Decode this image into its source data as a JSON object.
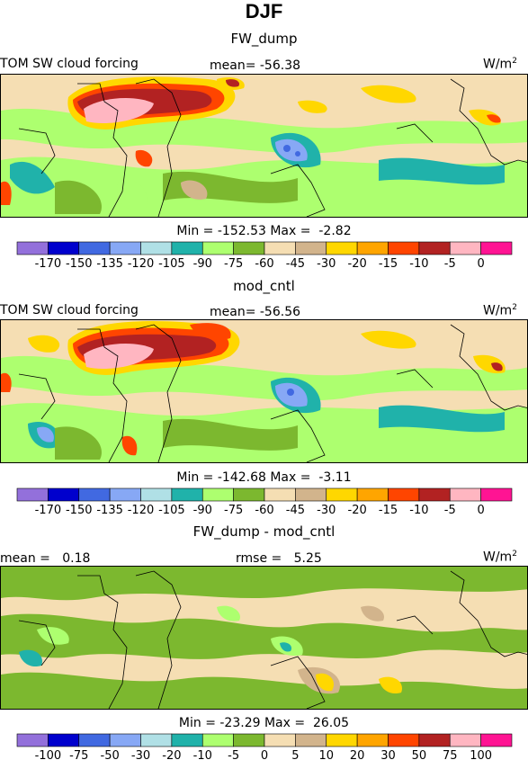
{
  "figure": {
    "season": "DJF"
  },
  "panels": [
    {
      "title": "FW_dump",
      "left_label": "TOM SW cloud forcing",
      "mid_label": "mean= -56.38",
      "units": "W/m",
      "units_sup": "2",
      "stats": "Min = -152.53 Max =  -2.82",
      "colorbar_ticks": [
        "-170",
        "-150",
        "-135",
        "-120",
        "-105",
        "-90",
        "-75",
        "-60",
        "-45",
        "-30",
        "-20",
        "-15",
        "-10",
        "-5",
        "0"
      ]
    },
    {
      "title": "mod_cntl",
      "left_label": "TOM SW cloud forcing",
      "mid_label": "mean= -56.56",
      "units": "W/m",
      "units_sup": "2",
      "stats": "Min = -142.68 Max =  -3.11",
      "colorbar_ticks": [
        "-170",
        "-150",
        "-135",
        "-120",
        "-105",
        "-90",
        "-75",
        "-60",
        "-45",
        "-30",
        "-20",
        "-15",
        "-10",
        "-5",
        "0"
      ]
    },
    {
      "title": "FW_dump - mod_cntl",
      "left_label": "mean =   0.18",
      "mid_label": "rmse =   5.25",
      "units": "W/m",
      "units_sup": "2",
      "stats": "Min = -23.29 Max =  26.05",
      "colorbar_ticks": [
        "-100",
        "-75",
        "-50",
        "-30",
        "-20",
        "-10",
        "-5",
        "0",
        "5",
        "10",
        "20",
        "30",
        "50",
        "75",
        "100"
      ]
    }
  ],
  "colorbar_colors": [
    "#9370db",
    "#0000cd",
    "#4169e1",
    "#87a8f5",
    "#b0e0e6",
    "#20b2aa",
    "#adff6f",
    "#7cb82f",
    "#f5deb3",
    "#d2b48c",
    "#ffd700",
    "#ffa500",
    "#ff4500",
    "#b22222",
    "#ffb6c1",
    "#ff1493"
  ],
  "chart_data": [
    {
      "type": "heatmap",
      "title": "FW_dump",
      "field": "TOM SW cloud forcing",
      "units": "W/m2",
      "mean": -56.38,
      "min": -152.53,
      "max": -2.82,
      "levels": [
        -170,
        -150,
        -135,
        -120,
        -105,
        -90,
        -75,
        -60,
        -45,
        -30,
        -20,
        -15,
        -10,
        -5,
        0
      ]
    },
    {
      "type": "heatmap",
      "title": "mod_cntl",
      "field": "TOM SW cloud forcing",
      "units": "W/m2",
      "mean": -56.56,
      "min": -142.68,
      "max": -3.11,
      "levels": [
        -170,
        -150,
        -135,
        -120,
        -105,
        -90,
        -75,
        -60,
        -45,
        -30,
        -20,
        -15,
        -10,
        -5,
        0
      ]
    },
    {
      "type": "heatmap",
      "title": "FW_dump - mod_cntl",
      "units": "W/m2",
      "mean": 0.18,
      "rmse": 5.25,
      "min": -23.29,
      "max": 26.05,
      "levels": [
        -100,
        -75,
        -50,
        -30,
        -20,
        -10,
        -5,
        0,
        5,
        10,
        20,
        30,
        50,
        75,
        100
      ]
    }
  ]
}
